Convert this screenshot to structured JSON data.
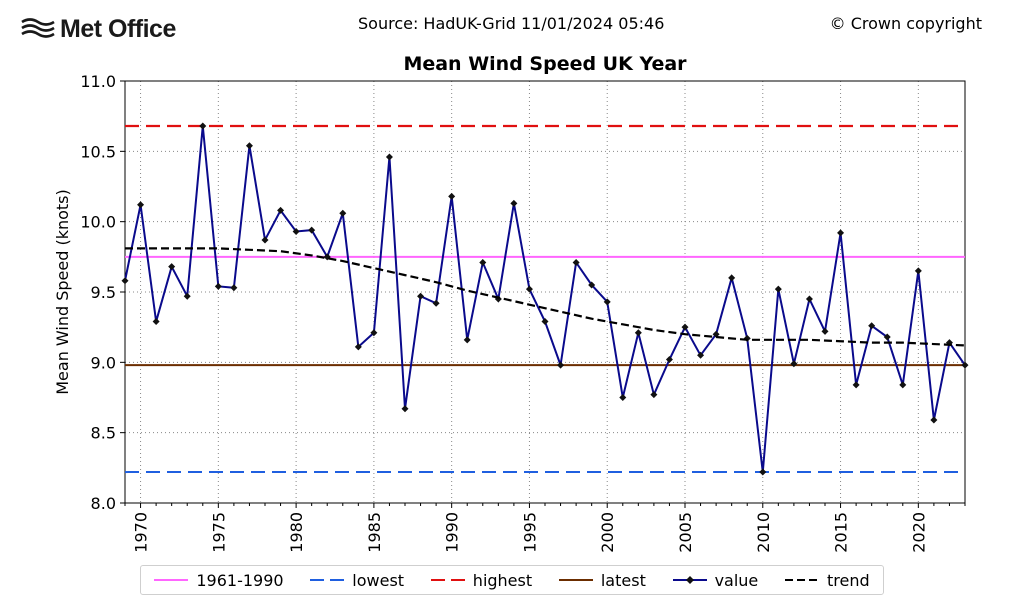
{
  "header": {
    "logo_text": "Met Office",
    "source": "Source: HadUK-Grid 11/01/2024 05:46",
    "copyright": "© Crown copyright"
  },
  "chart_data": {
    "type": "line",
    "title": "Mean Wind Speed UK Year",
    "xlabel": "",
    "ylabel": "Mean Wind Speed (knots)",
    "xlim": [
      1969,
      2023
    ],
    "ylim": [
      8.0,
      11.0
    ],
    "x_ticks": [
      1970,
      1975,
      1980,
      1985,
      1990,
      1995,
      2000,
      2005,
      2010,
      2015,
      2020
    ],
    "y_ticks": [
      8.0,
      8.5,
      9.0,
      9.5,
      10.0,
      10.5,
      11.0
    ],
    "grid": true,
    "legend_position": "bottom",
    "colors": {
      "baseline": "#ff66ff",
      "lowest": "#1f5fe0",
      "highest": "#e01010",
      "latest": "#6b2d00",
      "value": "#0a0a8c",
      "trend": "#000000"
    },
    "reference_lines": {
      "baseline_1961_1990": 9.75,
      "lowest": 8.22,
      "highest": 10.68,
      "latest": 8.98
    },
    "series": [
      {
        "name": "value",
        "x": [
          1969,
          1970,
          1971,
          1972,
          1973,
          1974,
          1975,
          1976,
          1977,
          1978,
          1979,
          1980,
          1981,
          1982,
          1983,
          1984,
          1985,
          1986,
          1987,
          1988,
          1989,
          1990,
          1991,
          1992,
          1993,
          1994,
          1995,
          1996,
          1997,
          1998,
          1999,
          2000,
          2001,
          2002,
          2003,
          2004,
          2005,
          2006,
          2007,
          2008,
          2009,
          2010,
          2011,
          2012,
          2013,
          2014,
          2015,
          2016,
          2017,
          2018,
          2019,
          2020,
          2021,
          2022,
          2023
        ],
        "y": [
          9.58,
          10.12,
          9.29,
          9.68,
          9.47,
          10.68,
          9.54,
          9.53,
          10.54,
          9.87,
          10.08,
          9.93,
          9.94,
          9.75,
          10.06,
          9.11,
          9.21,
          10.46,
          8.67,
          9.47,
          9.42,
          10.18,
          9.16,
          9.71,
          9.45,
          10.13,
          9.52,
          9.29,
          8.98,
          9.71,
          9.55,
          9.43,
          8.75,
          9.21,
          8.77,
          9.02,
          9.25,
          9.05,
          9.2,
          9.6,
          9.17,
          8.22,
          9.52,
          8.99,
          9.45,
          9.22,
          9.92,
          8.84,
          9.26,
          9.18,
          8.84,
          9.65,
          8.59,
          9.14,
          8.98
        ]
      },
      {
        "name": "trend",
        "x": [
          1969,
          1971,
          1973,
          1975,
          1977,
          1979,
          1981,
          1983,
          1985,
          1987,
          1989,
          1991,
          1993,
          1995,
          1997,
          1999,
          2001,
          2003,
          2005,
          2007,
          2009,
          2011,
          2013,
          2015,
          2017,
          2019,
          2021,
          2023
        ],
        "y": [
          9.81,
          9.81,
          9.81,
          9.81,
          9.8,
          9.79,
          9.76,
          9.72,
          9.67,
          9.62,
          9.57,
          9.51,
          9.46,
          9.41,
          9.36,
          9.31,
          9.27,
          9.23,
          9.2,
          9.18,
          9.16,
          9.16,
          9.16,
          9.15,
          9.14,
          9.14,
          9.13,
          9.12
        ]
      }
    ],
    "legend": [
      "1961-1990",
      "lowest",
      "highest",
      "latest",
      "value",
      "trend"
    ]
  }
}
